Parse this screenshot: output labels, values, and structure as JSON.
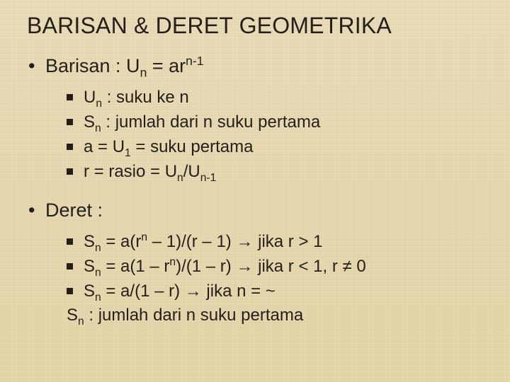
{
  "title": "BARISAN & DERET GEOMETRIKA",
  "colors": {
    "text": "#241f1a",
    "bg_top": "#e9dcb8",
    "bg_bottom": "#e6d6aa"
  },
  "typography": {
    "title_fontsize": 32,
    "top_fontsize": 27,
    "sub_fontsize": 24,
    "family": "Arial"
  },
  "barisan": {
    "heading_html": "Barisan : U<sub>n</sub> = ar<sup>n-1</sup>",
    "items": [
      "U<sub>n</sub> : suku ke n",
      "S<sub>n</sub> : jumlah dari n suku pertama",
      "a = U<sub>1</sub> = suku pertama",
      "r = rasio = U<sub>n</sub>/U<sub>n-1</sub>"
    ]
  },
  "deret": {
    "heading_html": "Deret :",
    "items": [
      "S<sub>n</sub> = a(r<sup>n</sup> – 1)/(r – 1) <span class=\"arrow\">→</span> jika r > 1",
      "S<sub>n</sub> = a(1 – r<sup>n</sup>)/(1 – r) <span class=\"arrow\">→</span> jika r < 1, r ≠ 0",
      "S<sub>n</sub> = a/(1 – r) <span class=\"arrow\">→</span> jika n = ~"
    ],
    "note_html": "S<sub>n</sub> : jumlah dari n suku pertama"
  }
}
